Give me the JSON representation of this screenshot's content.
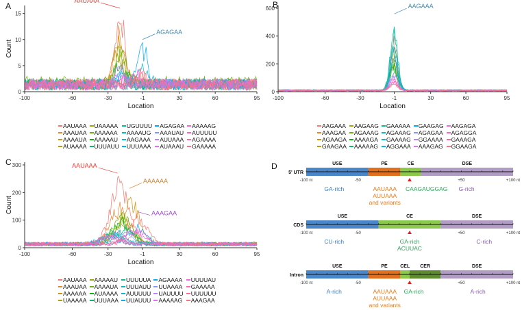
{
  "panel_labels": [
    "A",
    "B",
    "C",
    "D"
  ],
  "palette": [
    "#F8766D",
    "#E9842C",
    "#D69100",
    "#BC9D00",
    "#9CA700",
    "#6FB000",
    "#00B813",
    "#00BD61",
    "#00C08E",
    "#00C0B4",
    "#00BDD4",
    "#00B5EE",
    "#00A7FF",
    "#7F96FF",
    "#BC81FF",
    "#E26EF7",
    "#F863DF",
    "#FF62BF",
    "#FF6A9A",
    "#FF7277"
  ],
  "chart_data": [
    {
      "type": "line",
      "panel": "A",
      "xlabel": "Location",
      "ylabel": "Count",
      "xlim": [
        -100,
        95
      ],
      "ylim": [
        0,
        16
      ],
      "xticks": [
        -100,
        -60,
        -30,
        -1,
        30,
        60,
        95
      ],
      "yticks": [
        0,
        5,
        10,
        15
      ],
      "annotations": [
        {
          "text": "AAUAAA",
          "color": "#E8413A",
          "x": -20,
          "y": 16
        },
        {
          "text": "AGAGAA",
          "color": "#3A8FC0",
          "x": -1,
          "y": 10
        }
      ],
      "series": [
        {
          "name": "AAUAAA",
          "base": 1,
          "peak": 15,
          "at": -20
        },
        {
          "name": "AAAUAA",
          "base": 1,
          "peak": 11,
          "at": -21
        },
        {
          "name": "AAAAUA",
          "base": 1,
          "peak": 10,
          "at": -19
        },
        {
          "name": "AUAAAA",
          "base": 1,
          "peak": 8,
          "at": -22
        },
        {
          "name": "UAAAAA",
          "base": 1,
          "peak": 6,
          "at": -20
        },
        {
          "name": "AAAAAA",
          "base": 1.2,
          "peak": 7,
          "at": -18
        },
        {
          "name": "AAAAAU",
          "base": 1,
          "peak": 5,
          "at": -21
        },
        {
          "name": "UUUAUU",
          "base": 1,
          "peak": 3,
          "at": -15
        },
        {
          "name": "UGUUUU",
          "base": 1,
          "peak": 2,
          "at": -10
        },
        {
          "name": "AAAAUG",
          "base": 1,
          "peak": 3,
          "at": -20
        },
        {
          "name": "AAGAAA",
          "base": 1,
          "peak": 4,
          "at": -2
        },
        {
          "name": "UUUAAA",
          "base": 1,
          "peak": 2,
          "at": -18
        },
        {
          "name": "AGAGAA",
          "base": 1,
          "peak": 9,
          "at": -1
        },
        {
          "name": "AAAUAU",
          "base": 1,
          "peak": 2,
          "at": -20
        },
        {
          "name": "AUUAAA",
          "base": 1,
          "peak": 4,
          "at": -20
        },
        {
          "name": "AUAAAU",
          "base": 1,
          "peak": 2,
          "at": -19
        },
        {
          "name": "AAAAAG",
          "base": 1,
          "peak": 2,
          "at": -5
        },
        {
          "name": "AUUUUU",
          "base": 1,
          "peak": 2,
          "at": -12
        },
        {
          "name": "AGAAAA",
          "base": 1,
          "peak": 3,
          "at": -2
        },
        {
          "name": "GAAAAA",
          "base": 1,
          "peak": 2,
          "at": -3
        }
      ]
    },
    {
      "type": "line",
      "panel": "B",
      "xlabel": "Location",
      "ylabel": "",
      "xlim": [
        -100,
        95
      ],
      "ylim": [
        0,
        600
      ],
      "xticks": [
        -100,
        -60,
        -30,
        -1,
        30,
        60,
        95
      ],
      "yticks": [
        0,
        200,
        400,
        600
      ],
      "annotations": [
        {
          "text": "AAGAAA",
          "color": "#3A8FC0",
          "x": -1,
          "y": 560
        }
      ],
      "series": [
        {
          "name": "AAGAAA",
          "base": 15,
          "peak": 430,
          "at": -1
        },
        {
          "name": "AAAGAA",
          "base": 15,
          "peak": 300,
          "at": -2
        },
        {
          "name": "AGAAGA",
          "base": 15,
          "peak": 250,
          "at": -1
        },
        {
          "name": "GAAGAA",
          "base": 15,
          "peak": 200,
          "at": -2
        },
        {
          "name": "AAGAAG",
          "base": 15,
          "peak": 350,
          "at": -1
        },
        {
          "name": "AGAAAG",
          "base": 15,
          "peak": 280,
          "at": -1
        },
        {
          "name": "AAAAGA",
          "base": 15,
          "peak": 220,
          "at": -2
        },
        {
          "name": "AAAAAG",
          "base": 15,
          "peak": 180,
          "at": -1
        },
        {
          "name": "GAAAAA",
          "base": 15,
          "peak": 540,
          "at": -1
        },
        {
          "name": "AGAAAG",
          "base": 15,
          "peak": 470,
          "at": -1
        },
        {
          "name": "GAAAAG",
          "base": 15,
          "peak": 400,
          "at": -2
        },
        {
          "name": "AGGAAA",
          "base": 15,
          "peak": 260,
          "at": -1
        },
        {
          "name": "GAAGAG",
          "base": 15,
          "peak": 320,
          "at": -1
        },
        {
          "name": "AGAGAA",
          "base": 15,
          "peak": 150,
          "at": -2
        },
        {
          "name": "GGAAAA",
          "base": 15,
          "peak": 120,
          "at": -1
        },
        {
          "name": "AAAGAG",
          "base": 15,
          "peak": 100,
          "at": -2
        },
        {
          "name": "AAGAGA",
          "base": 15,
          "peak": 90,
          "at": -1
        },
        {
          "name": "AGAGGA",
          "base": 15,
          "peak": 80,
          "at": -1
        },
        {
          "name": "GAAAGA",
          "base": 15,
          "peak": 70,
          "at": -2
        },
        {
          "name": "GGAAGA",
          "base": 15,
          "peak": 60,
          "at": -1
        }
      ]
    },
    {
      "type": "line",
      "panel": "C",
      "xlabel": "Location",
      "ylabel": "Count",
      "xlim": [
        -100,
        95
      ],
      "ylim": [
        0,
        300
      ],
      "xticks": [
        -100,
        -60,
        -30,
        -1,
        30,
        60,
        95
      ],
      "yticks": [
        0,
        100,
        200,
        300
      ],
      "annotations": [
        {
          "text": "AAUAAA",
          "color": "#E8413A",
          "x": -22,
          "y": 270
        },
        {
          "text": "AAAAAA",
          "color": "#E07B20",
          "x": -12,
          "y": 215
        },
        {
          "text": "AAAGAA",
          "color": "#9A4FC0",
          "x": -5,
          "y": 130
        }
      ],
      "series": [
        {
          "name": "AAUAAA",
          "base": 20,
          "peak": 250,
          "at": -20
        },
        {
          "name": "AAAUAA",
          "base": 20,
          "peak": 150,
          "at": -21
        },
        {
          "name": "AAAAAA",
          "base": 22,
          "peak": 190,
          "at": -12
        },
        {
          "name": "UAAAAA",
          "base": 20,
          "peak": 90,
          "at": -18
        },
        {
          "name": "AAAAAU",
          "base": 20,
          "peak": 110,
          "at": -16
        },
        {
          "name": "AAAAUA",
          "base": 20,
          "peak": 120,
          "at": -18
        },
        {
          "name": "AUAAAA",
          "base": 20,
          "peak": 100,
          "at": -20
        },
        {
          "name": "UUUAAA",
          "base": 20,
          "peak": 60,
          "at": -15
        },
        {
          "name": "UUUUUA",
          "base": 20,
          "peak": 50,
          "at": -25
        },
        {
          "name": "UUUAUU",
          "base": 20,
          "peak": 40,
          "at": -28
        },
        {
          "name": "AUUUUU",
          "base": 20,
          "peak": 45,
          "at": -25
        },
        {
          "name": "UUAUUU",
          "base": 20,
          "peak": 35,
          "at": -30
        },
        {
          "name": "AGAAAA",
          "base": 20,
          "peak": 70,
          "at": -6
        },
        {
          "name": "UUAAAA",
          "base": 20,
          "peak": 55,
          "at": -18
        },
        {
          "name": "UAUUUU",
          "base": 20,
          "peak": 40,
          "at": -26
        },
        {
          "name": "AAAAAG",
          "base": 20,
          "peak": 60,
          "at": -8
        },
        {
          "name": "UUUUAU",
          "base": 20,
          "peak": 30,
          "at": -28
        },
        {
          "name": "GAAAAA",
          "base": 20,
          "peak": 50,
          "at": -5
        },
        {
          "name": "UUUUUU",
          "base": 20,
          "peak": 35,
          "at": -30
        },
        {
          "name": "AAAGAA",
          "base": 20,
          "peak": 105,
          "at": -5
        }
      ]
    }
  ],
  "diagram": {
    "colors": {
      "USE": "#4A86C8",
      "PE": "#E07020",
      "CE": "#8CC84B",
      "CEL": "#8CC84B",
      "CER": "#5E8A30",
      "DSE": "#B19CC6"
    },
    "axis_labels": [
      "-100 nt",
      "-50",
      "+50",
      "+100 nt"
    ],
    "rows": [
      {
        "name": "5' UTR",
        "regions": [
          {
            "label": "USE",
            "from": -100,
            "to": -40
          },
          {
            "label": "PE",
            "from": -40,
            "to": -9
          },
          {
            "label": "CE",
            "from": -9,
            "to": 11
          },
          {
            "label": "DSE",
            "from": 11,
            "to": 100
          }
        ],
        "motifs": [
          {
            "text": "GA-rich",
            "color": "#3A7FC0",
            "at": -73,
            "lines": [
              "GA-rich"
            ]
          },
          {
            "color": "#E07B20",
            "at": -24,
            "lines": [
              "AAUAAA",
              "AUUAAA",
              "and variants"
            ]
          },
          {
            "color": "#2EA45A",
            "at": 0,
            "lines": [
              "CAAGAUGGAG"
            ]
          },
          {
            "color": "#8A5AB0",
            "at": 55,
            "lines": [
              "G-rich"
            ]
          }
        ]
      },
      {
        "name": "CDS",
        "regions": [
          {
            "label": "USE",
            "from": -100,
            "to": -30
          },
          {
            "label": "CE",
            "from": -30,
            "to": 30
          },
          {
            "label": "DSE",
            "from": 30,
            "to": 100
          }
        ],
        "motifs": [
          {
            "color": "#3A7FC0",
            "at": -73,
            "lines": [
              "CU-rich"
            ]
          },
          {
            "color": "#2EA45A",
            "at": 0,
            "lines": [
              "GA-rich",
              "ACUUAC"
            ]
          },
          {
            "color": "#8A5AB0",
            "at": 72,
            "lines": [
              "C-rich"
            ]
          }
        ]
      },
      {
        "name": "Intron",
        "regions": [
          {
            "label": "USE",
            "from": -100,
            "to": -40
          },
          {
            "label": "PE",
            "from": -40,
            "to": -9
          },
          {
            "label": "CEL",
            "from": -9,
            "to": 0
          },
          {
            "label": "CER",
            "from": 0,
            "to": 30
          },
          {
            "label": "DSE",
            "from": 30,
            "to": 100
          }
        ],
        "motifs": [
          {
            "color": "#3A7FC0",
            "at": -73,
            "lines": [
              "A-rich"
            ]
          },
          {
            "color": "#E07B20",
            "at": -24,
            "lines": [
              "AAUAAA",
              "AUUAAA",
              "and variants"
            ]
          },
          {
            "color": "#2EA45A",
            "at": 4,
            "lines": [
              "GA-rich"
            ]
          },
          {
            "color": "#8A5AB0",
            "at": 66,
            "lines": [
              "A-rich"
            ]
          }
        ]
      }
    ]
  }
}
